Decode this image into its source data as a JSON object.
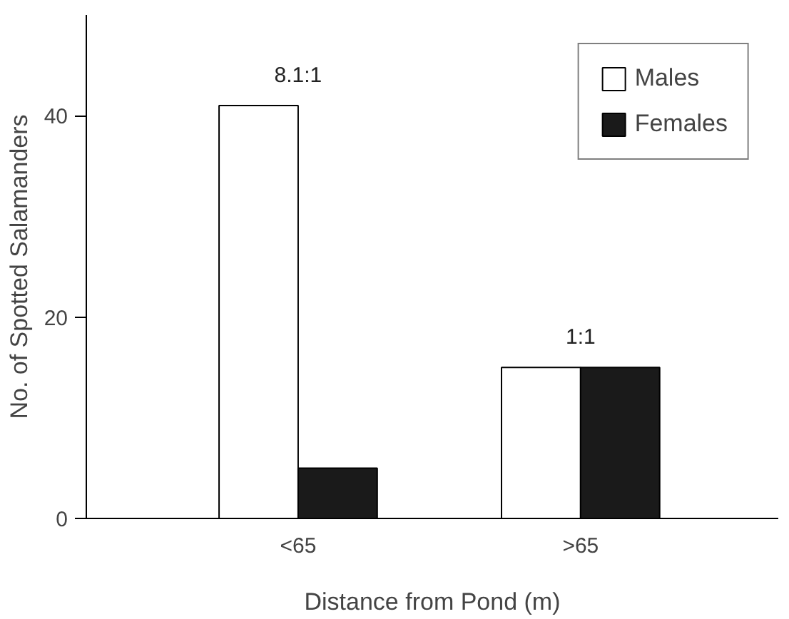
{
  "chart_data": {
    "type": "bar",
    "xlabel": "Distance from Pond (m)",
    "ylabel": "No. of Spotted Salamanders",
    "categories": [
      "<65",
      ">65"
    ],
    "series": [
      {
        "name": "Males",
        "color": "#ffffff",
        "values": [
          41,
          15
        ]
      },
      {
        "name": "Females",
        "color": "#1a1a1a",
        "values": [
          5,
          15
        ]
      }
    ],
    "ylim": [
      0,
      50
    ],
    "yticks": [
      0,
      20,
      40
    ],
    "grid": false,
    "legend": "top right",
    "annotations": [
      "8.1:1",
      "1:1"
    ]
  }
}
